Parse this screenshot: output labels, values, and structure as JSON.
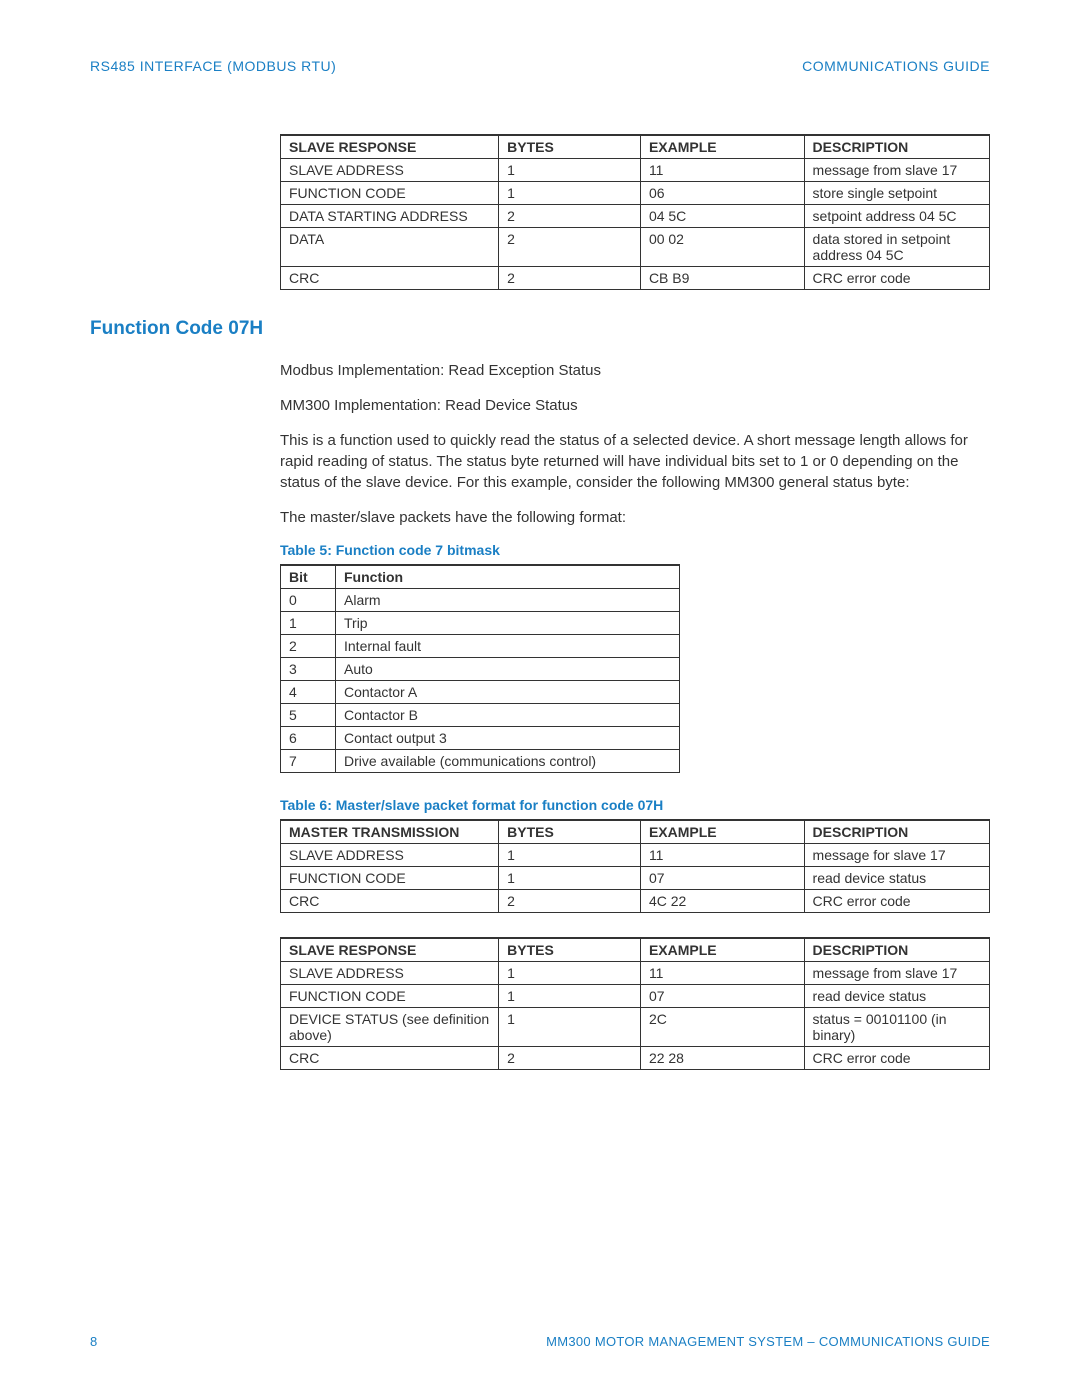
{
  "colors": {
    "accent": "#1a7fc4",
    "text": "#333333",
    "border": "#333333",
    "background": "#ffffff"
  },
  "typography": {
    "body_fontsize": 15,
    "table_fontsize": 14,
    "header_fontsize": 14,
    "section_title_fontsize": 19,
    "caption_fontsize": 14
  },
  "header": {
    "left": "RS485 INTERFACE (MODBUS RTU)",
    "right": "COMMUNICATIONS GUIDE"
  },
  "table1": {
    "columns": [
      "SLAVE RESPONSE",
      "BYTES",
      "EXAMPLE",
      "DESCRIPTION"
    ],
    "rows": [
      [
        "SLAVE ADDRESS",
        "1",
        "11",
        "message from slave 17"
      ],
      [
        "FUNCTION CODE",
        "1",
        "06",
        "store single setpoint"
      ],
      [
        "DATA STARTING ADDRESS",
        "2",
        "04 5C",
        "setpoint address 04 5C"
      ],
      [
        "DATA",
        "2",
        "00 02",
        "data stored in setpoint address 04 5C"
      ],
      [
        "CRC",
        "2",
        "CB B9",
        "CRC error code"
      ]
    ]
  },
  "section": {
    "title": "Function Code 07H",
    "p1": "Modbus Implementation: Read Exception Status",
    "p2": "MM300 Implementation: Read Device Status",
    "p3": "This is a function used to quickly read the status of a selected device. A short message length allows for rapid reading of status. The status byte returned will have individual bits set to 1 or 0 depending on the status of the slave device. For this example, consider the following MM300 general status byte:",
    "p4": "The master/slave packets have the following format:"
  },
  "table2": {
    "caption": "Table 5: Function code 7 bitmask",
    "columns": [
      "Bit",
      "Function"
    ],
    "rows": [
      [
        "0",
        "Alarm"
      ],
      [
        "1",
        "Trip"
      ],
      [
        "2",
        "Internal fault"
      ],
      [
        "3",
        "Auto"
      ],
      [
        "4",
        "Contactor A"
      ],
      [
        "5",
        "Contactor B"
      ],
      [
        "6",
        "Contact output 3"
      ],
      [
        "7",
        "Drive available (communications control)"
      ]
    ]
  },
  "table3": {
    "caption": "Table 6: Master/slave packet format for function code 07H",
    "columns": [
      "MASTER TRANSMISSION",
      "BYTES",
      "EXAMPLE",
      "DESCRIPTION"
    ],
    "rows": [
      [
        "SLAVE ADDRESS",
        "1",
        "11",
        "message for slave 17"
      ],
      [
        "FUNCTION CODE",
        "1",
        "07",
        "read device status"
      ],
      [
        "CRC",
        "2",
        "4C 22",
        "CRC error code"
      ]
    ]
  },
  "table4": {
    "columns": [
      "SLAVE RESPONSE",
      "BYTES",
      "EXAMPLE",
      "DESCRIPTION"
    ],
    "rows": [
      [
        "SLAVE ADDRESS",
        "1",
        "11",
        "message from slave 17"
      ],
      [
        "FUNCTION CODE",
        "1",
        "07",
        "read device status"
      ],
      [
        "DEVICE STATUS (see definition above)",
        "1",
        "2C",
        "status = 00101100 (in binary)"
      ],
      [
        "CRC",
        "2",
        "22 28",
        "CRC error code"
      ]
    ]
  },
  "footer": {
    "page": "8",
    "text": "MM300 MOTOR MANAGEMENT SYSTEM – COMMUNICATIONS GUIDE"
  }
}
